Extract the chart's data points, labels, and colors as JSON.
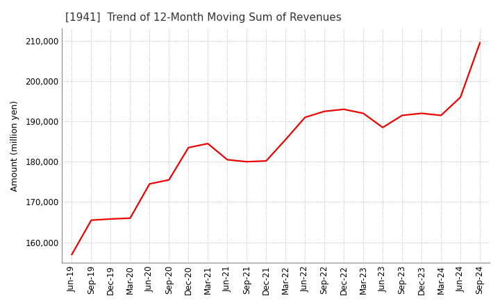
{
  "title": "[1941]  Trend of 12-Month Moving Sum of Revenues",
  "ylabel": "Amount (million yen)",
  "line_color": "#ee0000",
  "background_color": "#ffffff",
  "grid_color": "#aaaaaa",
  "ylim": [
    155000,
    213000
  ],
  "yticks": [
    160000,
    170000,
    180000,
    190000,
    200000,
    210000
  ],
  "x_labels": [
    "Jun-19",
    "Sep-19",
    "Dec-19",
    "Mar-20",
    "Jun-20",
    "Sep-20",
    "Dec-20",
    "Mar-21",
    "Jun-21",
    "Sep-21",
    "Dec-21",
    "Mar-22",
    "Jun-22",
    "Sep-22",
    "Dec-22",
    "Mar-23",
    "Jun-23",
    "Sep-23",
    "Dec-23",
    "Mar-24",
    "Jun-24",
    "Sep-24"
  ],
  "values": [
    157000,
    165500,
    165800,
    166000,
    174500,
    175500,
    183500,
    184500,
    180500,
    180000,
    180200,
    185500,
    191000,
    192500,
    193000,
    192000,
    188500,
    191500,
    192000,
    191500,
    196000,
    209500
  ]
}
